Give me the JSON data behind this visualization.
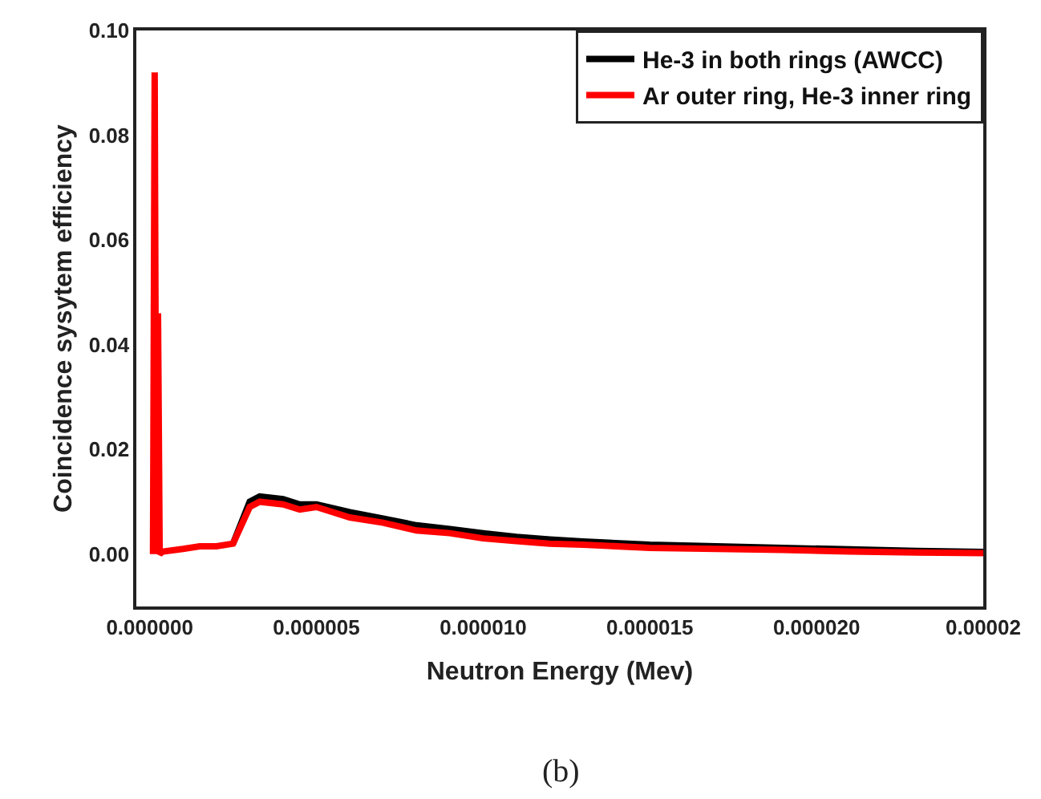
{
  "chart_data": {
    "type": "line",
    "xlabel": "Neutron Energy (Mev)",
    "ylabel": "Coincidence sysytem efficiency",
    "annotations": [
      "(b)"
    ],
    "xlim": [
      -4e-07,
      2.5e-05
    ],
    "ylim": [
      -0.01,
      0.1
    ],
    "xticks": [
      {
        "value": 0,
        "label": "0.000000"
      },
      {
        "value": 5e-06,
        "label": "0.000005"
      },
      {
        "value": 1e-05,
        "label": "0.000010"
      },
      {
        "value": 1.5e-05,
        "label": "0.000015"
      },
      {
        "value": 2e-05,
        "label": "0.000020"
      },
      {
        "value": 2.5e-05,
        "label": "0.00002"
      }
    ],
    "yticks": [
      {
        "value": 0,
        "label": "0.00"
      },
      {
        "value": 0.02,
        "label": "0.02"
      },
      {
        "value": 0.04,
        "label": "0.04"
      },
      {
        "value": 0.06,
        "label": "0.06"
      },
      {
        "value": 0.08,
        "label": "0.08"
      },
      {
        "value": 0.1,
        "label": "0.10"
      }
    ],
    "legend": "top right",
    "marker": "none",
    "line_style": "solid",
    "series": [
      {
        "name": "He-3 in both rings (AWCC)",
        "color": "#000000",
        "x": [
          2.5e-06,
          3e-06,
          3.3e-06,
          4e-06,
          4.5e-06,
          5e-06,
          6e-06,
          7e-06,
          8e-06,
          9e-06,
          1e-05,
          1.1e-05,
          1.2e-05,
          1.3e-05,
          1.5e-05,
          1.7e-05,
          1.9e-05,
          2.1e-05,
          2.3e-05,
          2.5e-05
        ],
        "values": [
          0.002,
          0.01,
          0.011,
          0.0105,
          0.0095,
          0.0095,
          0.008,
          0.0068,
          0.0055,
          0.0048,
          0.004,
          0.0033,
          0.0028,
          0.0024,
          0.0018,
          0.0015,
          0.0012,
          0.0009,
          0.0006,
          0.0004
        ]
      },
      {
        "name": "Ar outer ring, He-3 inner ring",
        "color": "#ff0000",
        "x": [
          1e-07,
          1.5e-07,
          2e-07,
          2.5e-07,
          3e-07,
          4e-07,
          1e-06,
          1.5e-06,
          2e-06,
          2.5e-06,
          3e-06,
          3.3e-06,
          4e-06,
          4.5e-06,
          5e-06,
          6e-06,
          7e-06,
          8e-06,
          9e-06,
          1e-05,
          1.1e-05,
          1.2e-05,
          1.3e-05,
          1.5e-05,
          1.7e-05,
          1.9e-05,
          2.1e-05,
          2.3e-05,
          2.5e-05
        ],
        "values": [
          0.0,
          0.092,
          0.0,
          0.046,
          0.0,
          0.0005,
          0.001,
          0.0015,
          0.0015,
          0.002,
          0.009,
          0.01,
          0.0095,
          0.0085,
          0.009,
          0.007,
          0.006,
          0.0045,
          0.004,
          0.003,
          0.0025,
          0.002,
          0.0018,
          0.0012,
          0.001,
          0.0008,
          0.0005,
          0.0003,
          0.0002
        ]
      }
    ]
  }
}
